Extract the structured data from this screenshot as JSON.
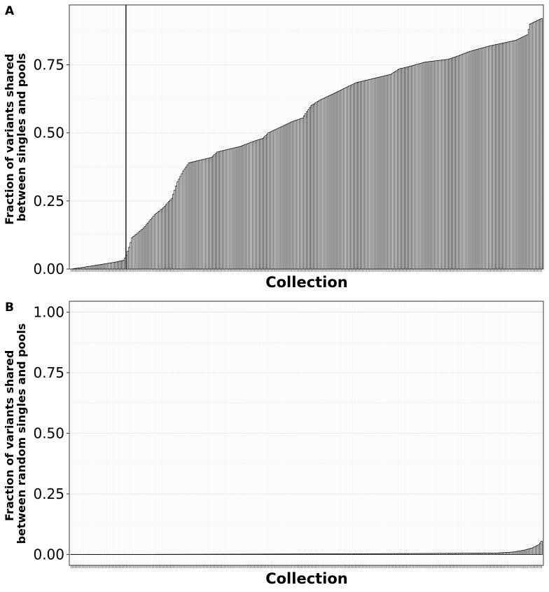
{
  "chart_data": [
    {
      "panel": "A",
      "type": "bar",
      "xlabel": "Collection",
      "ylabel": [
        "Fraction of variants shared",
        "between singles and pools"
      ],
      "ylim": [
        0,
        0.97
      ],
      "yticks": [
        0,
        0.25,
        0.5,
        0.75
      ],
      "ytick_labels": [
        "0.00",
        "0.25",
        "0.50",
        "0.75"
      ],
      "grid": true,
      "n_bars": 332,
      "reference_line_after_bar": 39,
      "values_sorted_ascending": true,
      "value_profile": [
        [
          1,
          0.0
        ],
        [
          8,
          0.005
        ],
        [
          20,
          0.015
        ],
        [
          32,
          0.025
        ],
        [
          38,
          0.032
        ],
        [
          40,
          0.05
        ],
        [
          42,
          0.08
        ],
        [
          44,
          0.115
        ],
        [
          52,
          0.15
        ],
        [
          56,
          0.175
        ],
        [
          60,
          0.2
        ],
        [
          66,
          0.225
        ],
        [
          72,
          0.26
        ],
        [
          76,
          0.32
        ],
        [
          80,
          0.36
        ],
        [
          84,
          0.39
        ],
        [
          100,
          0.41
        ],
        [
          104,
          0.43
        ],
        [
          120,
          0.45
        ],
        [
          130,
          0.47
        ],
        [
          136,
          0.48
        ],
        [
          140,
          0.5
        ],
        [
          148,
          0.52
        ],
        [
          156,
          0.54
        ],
        [
          164,
          0.555
        ],
        [
          170,
          0.6
        ],
        [
          176,
          0.62
        ],
        [
          186,
          0.645
        ],
        [
          194,
          0.665
        ],
        [
          202,
          0.685
        ],
        [
          214,
          0.7
        ],
        [
          226,
          0.715
        ],
        [
          232,
          0.735
        ],
        [
          240,
          0.745
        ],
        [
          250,
          0.76
        ],
        [
          266,
          0.77
        ],
        [
          272,
          0.78
        ],
        [
          282,
          0.8
        ],
        [
          296,
          0.82
        ],
        [
          314,
          0.84
        ],
        [
          322,
          0.86
        ],
        [
          324,
          0.9
        ],
        [
          332,
          0.92
        ]
      ]
    },
    {
      "panel": "B",
      "type": "bar",
      "xlabel": "Collection",
      "ylabel": [
        "Fraction of variants shared",
        "between random singles and pools"
      ],
      "ylim": [
        -0.045,
        1.045
      ],
      "yticks": [
        0,
        0.25,
        0.5,
        0.75,
        1.0
      ],
      "ytick_labels": [
        "0.00",
        "0.25",
        "0.50",
        "0.75",
        "1.00"
      ],
      "grid": true,
      "n_bars": 332,
      "values_sorted_ascending": true,
      "value_profile": [
        [
          1,
          0.0
        ],
        [
          60,
          0.0005
        ],
        [
          150,
          0.002
        ],
        [
          250,
          0.004
        ],
        [
          300,
          0.006
        ],
        [
          312,
          0.01
        ],
        [
          320,
          0.018
        ],
        [
          326,
          0.028
        ],
        [
          330,
          0.04
        ],
        [
          332,
          0.055
        ]
      ]
    }
  ]
}
